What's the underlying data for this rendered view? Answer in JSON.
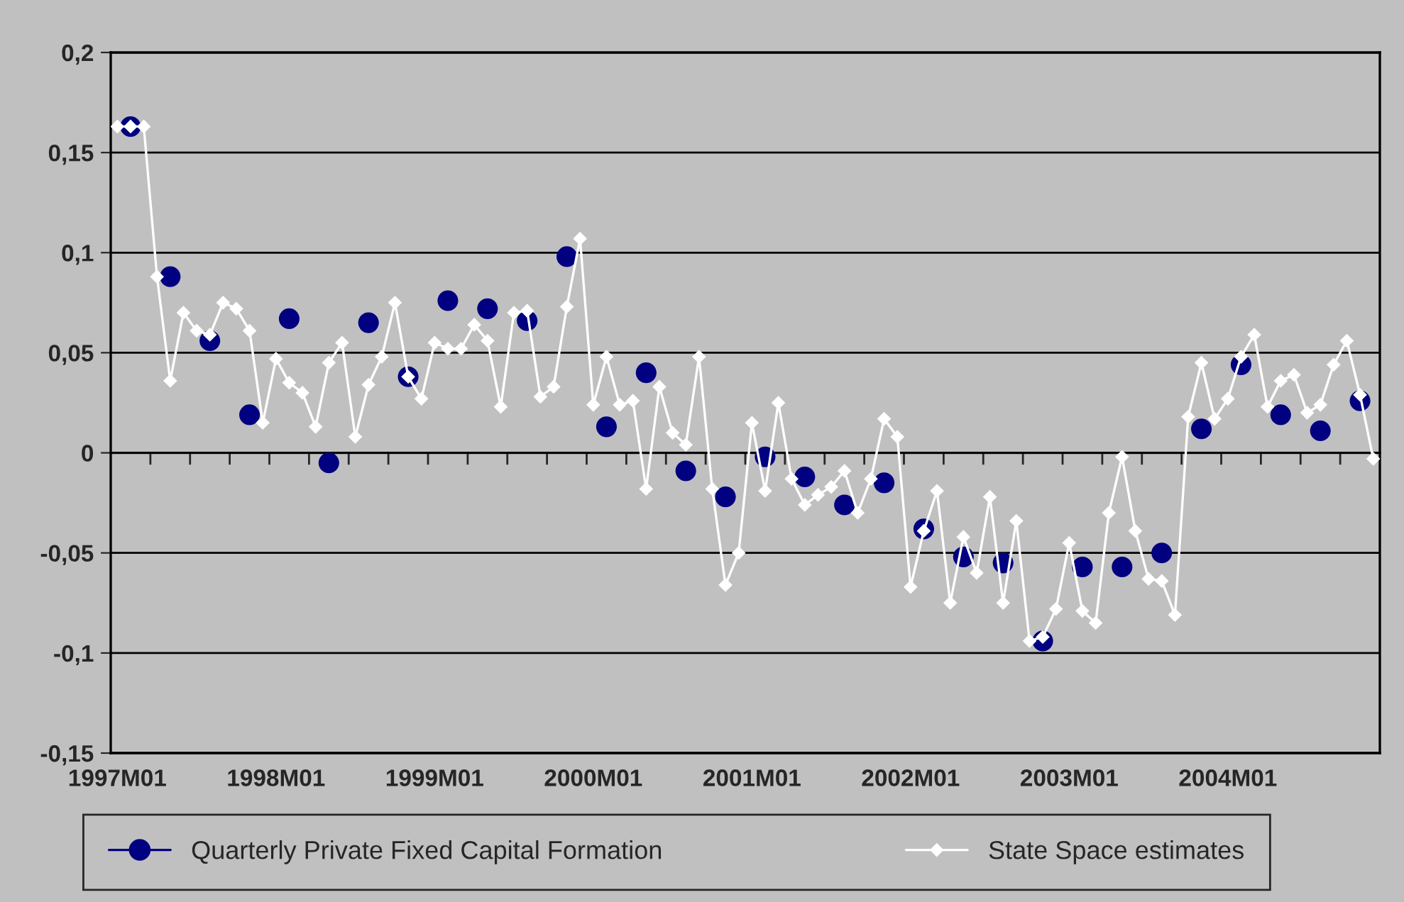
{
  "chart_data": {
    "type": "line",
    "categories": [
      "1997M01",
      null,
      null,
      null,
      null,
      null,
      null,
      null,
      null,
      null,
      null,
      null,
      "1998M01",
      null,
      null,
      null,
      null,
      null,
      null,
      null,
      null,
      null,
      null,
      null,
      "1999M01",
      null,
      null,
      null,
      null,
      null,
      null,
      null,
      null,
      null,
      null,
      null,
      "2000M01",
      null,
      null,
      null,
      null,
      null,
      null,
      null,
      null,
      null,
      null,
      null,
      "2001M01",
      null,
      null,
      null,
      null,
      null,
      null,
      null,
      null,
      null,
      null,
      null,
      "2002M01",
      null,
      null,
      null,
      null,
      null,
      null,
      null,
      null,
      null,
      null,
      null,
      "2003M01",
      null,
      null,
      null,
      null,
      null,
      null,
      null,
      null,
      null,
      null,
      null,
      "2004M01",
      null,
      null,
      null,
      null,
      null,
      null,
      null,
      null,
      null,
      null,
      null
    ],
    "series": [
      {
        "name": "Quarterly Private Fixed Capital Formation",
        "type": "scatter",
        "marker": "circle",
        "color": "#000080",
        "values": [
          null,
          0.163,
          null,
          null,
          0.088,
          null,
          null,
          0.056,
          null,
          null,
          0.019,
          null,
          null,
          0.067,
          null,
          null,
          -0.005,
          null,
          null,
          0.065,
          null,
          null,
          0.038,
          null,
          null,
          0.076,
          null,
          null,
          0.072,
          null,
          null,
          0.066,
          null,
          null,
          0.098,
          null,
          null,
          0.013,
          null,
          null,
          0.04,
          null,
          null,
          -0.009,
          null,
          null,
          -0.022,
          null,
          null,
          -0.002,
          null,
          null,
          -0.012,
          null,
          null,
          -0.026,
          null,
          null,
          -0.015,
          null,
          null,
          -0.038,
          null,
          null,
          -0.052,
          null,
          null,
          -0.055,
          null,
          null,
          -0.094,
          null,
          null,
          -0.057,
          null,
          null,
          -0.057,
          null,
          null,
          -0.05,
          null,
          null,
          0.012,
          null,
          null,
          0.044,
          null,
          null,
          0.019,
          null,
          null,
          0.011,
          null,
          null,
          0.026,
          null
        ]
      },
      {
        "name": "State Space estimates",
        "marker": "diamond",
        "color": "#ffffff",
        "values": [
          0.163,
          0.163,
          0.163,
          0.088,
          0.036,
          0.07,
          0.061,
          0.059,
          0.075,
          0.072,
          0.061,
          0.015,
          0.047,
          0.035,
          0.03,
          0.013,
          0.045,
          0.055,
          0.008,
          0.034,
          0.048,
          0.075,
          0.038,
          0.027,
          0.055,
          0.052,
          0.052,
          0.064,
          0.056,
          0.023,
          0.07,
          0.071,
          0.028,
          0.033,
          0.073,
          0.107,
          0.024,
          0.048,
          0.024,
          0.026,
          -0.018,
          0.033,
          0.01,
          0.004,
          0.048,
          -0.018,
          -0.066,
          -0.05,
          0.015,
          -0.019,
          0.025,
          -0.013,
          -0.026,
          -0.021,
          -0.017,
          -0.009,
          -0.03,
          -0.013,
          0.017,
          0.008,
          -0.067,
          -0.039,
          -0.019,
          -0.075,
          -0.042,
          -0.06,
          -0.022,
          -0.075,
          -0.034,
          -0.094,
          -0.092,
          -0.078,
          -0.045,
          -0.079,
          -0.085,
          -0.03,
          -0.002,
          -0.039,
          -0.063,
          -0.064,
          -0.081,
          0.018,
          0.045,
          0.017,
          0.027,
          0.048,
          0.059,
          0.023,
          0.036,
          0.039,
          0.02,
          0.024,
          0.044,
          0.056,
          0.029,
          -0.003
        ]
      }
    ],
    "ylim": [
      -0.15,
      0.2
    ],
    "yticks": [
      {
        "value": -0.15,
        "label": "-0,15"
      },
      {
        "value": -0.1,
        "label": "-0,1"
      },
      {
        "value": -0.05,
        "label": "-0,05"
      },
      0,
      {
        "value": 0.05,
        "label": "0,05"
      },
      {
        "value": 0.1,
        "label": "0,1"
      },
      {
        "value": 0.15,
        "label": "0,15"
      },
      {
        "value": 0.2,
        "label": "0,2"
      }
    ],
    "grid": "y",
    "legend": "bottom"
  }
}
